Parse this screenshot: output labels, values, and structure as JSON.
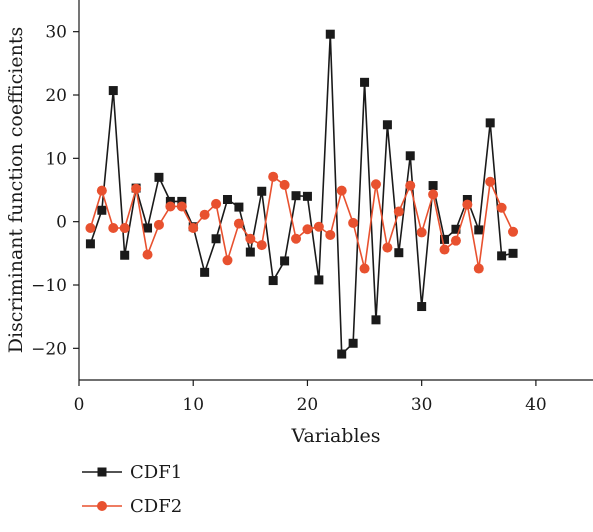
{
  "chart_data": {
    "type": "line",
    "xlabel": "Variables",
    "ylabel": "Discriminant function coefficients",
    "xlim": [
      0,
      45
    ],
    "ylim": [
      -25,
      35
    ],
    "xticks": [
      0,
      10,
      20,
      30,
      40
    ],
    "yticks": [
      -20,
      -10,
      0,
      10,
      20,
      30
    ],
    "x": [
      1,
      2,
      3,
      4,
      5,
      6,
      7,
      8,
      9,
      10,
      11,
      12,
      13,
      14,
      15,
      16,
      17,
      18,
      19,
      20,
      21,
      22,
      23,
      24,
      25,
      26,
      27,
      28,
      29,
      30,
      31,
      32,
      33,
      34,
      35,
      36,
      37,
      38
    ],
    "series": [
      {
        "name": "CDF1",
        "color": "#1a1a1a",
        "marker": "square",
        "values": [
          -3.5,
          1.8,
          20.7,
          -5.3,
          5.3,
          -1.0,
          7.0,
          3.2,
          3.2,
          -0.8,
          -8.0,
          -2.7,
          3.5,
          2.3,
          -4.8,
          4.8,
          -9.3,
          -6.2,
          4.1,
          4.0,
          -9.2,
          29.6,
          -20.9,
          -19.2,
          22.0,
          -15.5,
          15.3,
          -4.9,
          10.4,
          -13.4,
          5.7,
          -2.8,
          -1.2,
          3.5,
          -1.3,
          15.6,
          -5.4,
          -5.0
        ]
      },
      {
        "name": "CDF2",
        "color": "#e8512f",
        "marker": "circle",
        "values": [
          -1.0,
          4.9,
          -1.0,
          -1.0,
          5.2,
          -5.2,
          -0.5,
          2.4,
          2.4,
          -1.0,
          1.1,
          2.8,
          -6.1,
          -0.3,
          -2.7,
          -3.7,
          7.1,
          5.8,
          -2.7,
          -1.2,
          -0.8,
          -2.1,
          4.9,
          -0.2,
          -7.4,
          5.9,
          -4.1,
          1.6,
          5.7,
          -1.7,
          4.3,
          -4.4,
          -3.0,
          2.7,
          -7.4,
          6.3,
          2.2,
          -1.6
        ]
      }
    ]
  }
}
